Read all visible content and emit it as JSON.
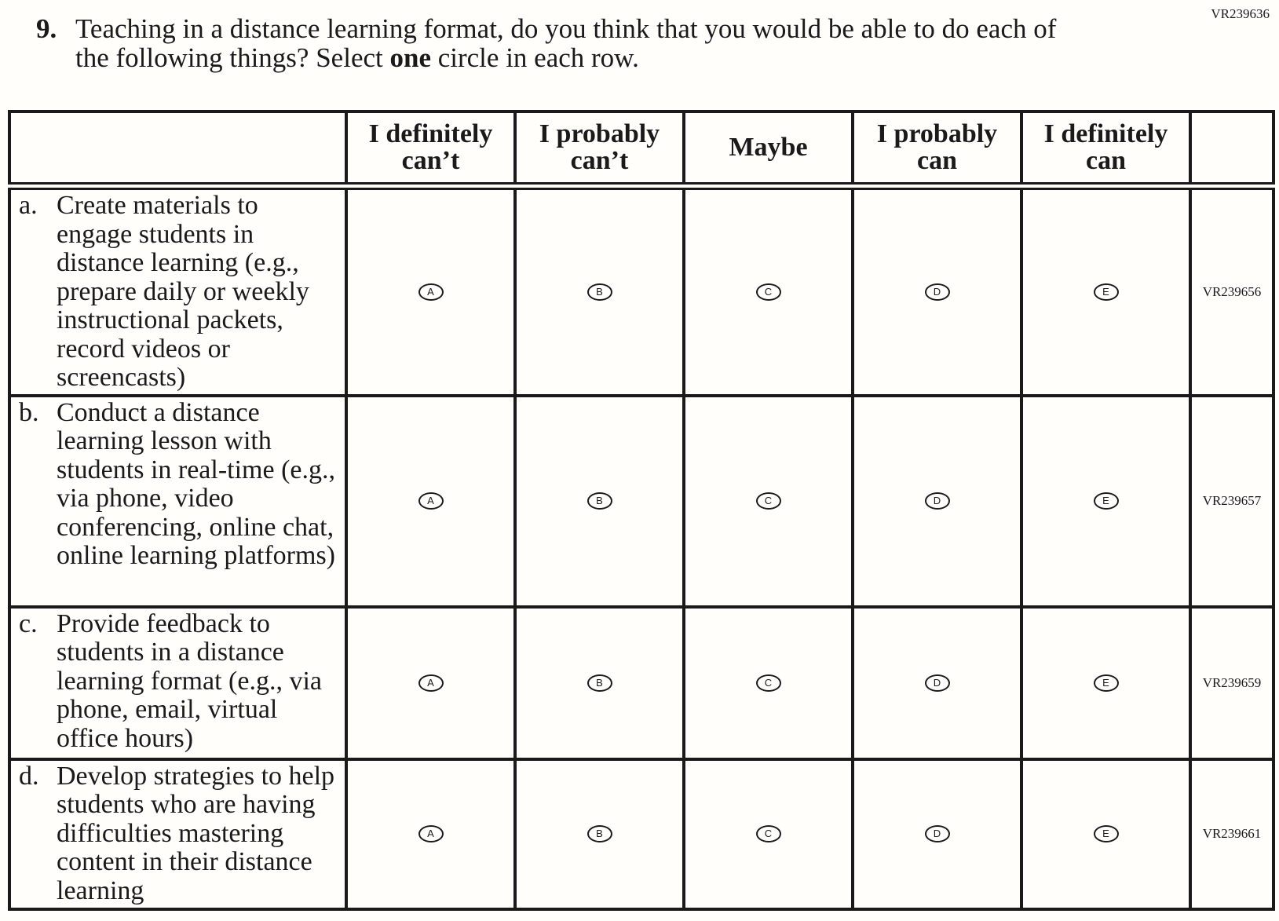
{
  "page_code": "VR239636",
  "question": {
    "number": "9.",
    "text_before": "Teaching in a distance learning format, do you think that you would be able to do each of the following things? Select ",
    "text_bold": "one",
    "text_after": " circle in each row."
  },
  "columns": [
    "I definitely can’t",
    "I probably can’t",
    "Maybe",
    "I probably can",
    "I definitely can"
  ],
  "bubble_letters": [
    "A",
    "B",
    "C",
    "D",
    "E"
  ],
  "rows": [
    {
      "letter": "a.",
      "text": "Create materials to engage students in distance learning (e.g., prepare daily or weekly instructional packets, record videos or screencasts)",
      "code": "VR239656"
    },
    {
      "letter": "b.",
      "text": "Conduct a distance learning lesson with students in real-time (e.g., via phone, video conferencing, online chat, online learning platforms)",
      "code": "VR239657"
    },
    {
      "letter": "c.",
      "text": "Provide feedback to students in a distance learning format (e.g., via phone, email, virtual office hours)",
      "code": "VR239659"
    },
    {
      "letter": "d.",
      "text": "Develop strategies to help students who are having difficulties mastering content in their distance learning",
      "code": "VR239661"
    }
  ]
}
